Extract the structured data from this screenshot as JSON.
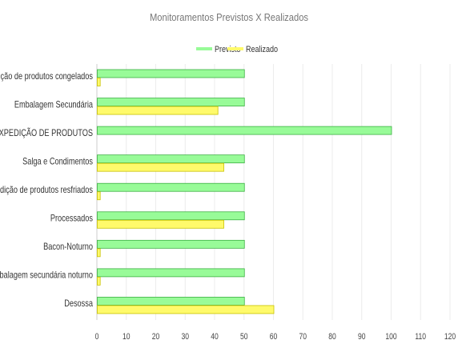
{
  "chart_data": {
    "type": "bar",
    "orientation": "horizontal",
    "title": "Monitoramentos Previstos X Realizados",
    "categories": [
      "Expedição de produtos congelados",
      "Embalagem Secundária",
      "EXPEDIÇÃO DE PRODUTOS",
      "Salga e Condimentos",
      "Expedição de produtos resfriados",
      "Processados",
      "Bacon-Noturno",
      "Embalagem secundária noturno",
      "Desossa"
    ],
    "series": [
      {
        "name": "Previsto",
        "color": "#98fb98",
        "stroke": "#3cb043",
        "values": [
          50,
          50,
          100,
          50,
          50,
          50,
          50,
          50,
          50
        ]
      },
      {
        "name": "Realizado",
        "color": "#fffa6b",
        "stroke": "#c9c200",
        "values": [
          1,
          41,
          0,
          43,
          1,
          43,
          1,
          1,
          60
        ]
      }
    ],
    "xlim": [
      0,
      120
    ],
    "xticks": [
      0,
      10,
      20,
      30,
      40,
      50,
      60,
      70,
      80,
      90,
      100,
      110,
      120
    ],
    "grid": true,
    "legend_position": "top-center"
  }
}
